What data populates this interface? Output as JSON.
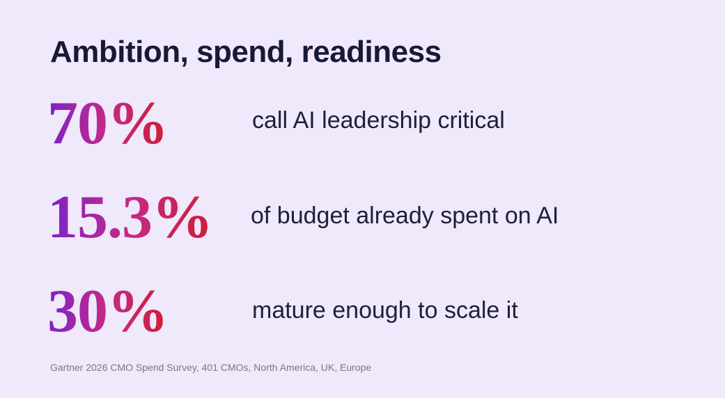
{
  "header": {
    "title": "Ambition, spend, readiness"
  },
  "stats": [
    {
      "value": "70%",
      "label": "call AI leadership critical"
    },
    {
      "value": "15.3%",
      "label": "of budget already spent on AI"
    },
    {
      "value": "30%",
      "label": "mature enough to scale it"
    }
  ],
  "footer": {
    "source": "Gartner 2026 CMO Spend Survey, 401 CMOs, North America, UK, Europe"
  }
}
